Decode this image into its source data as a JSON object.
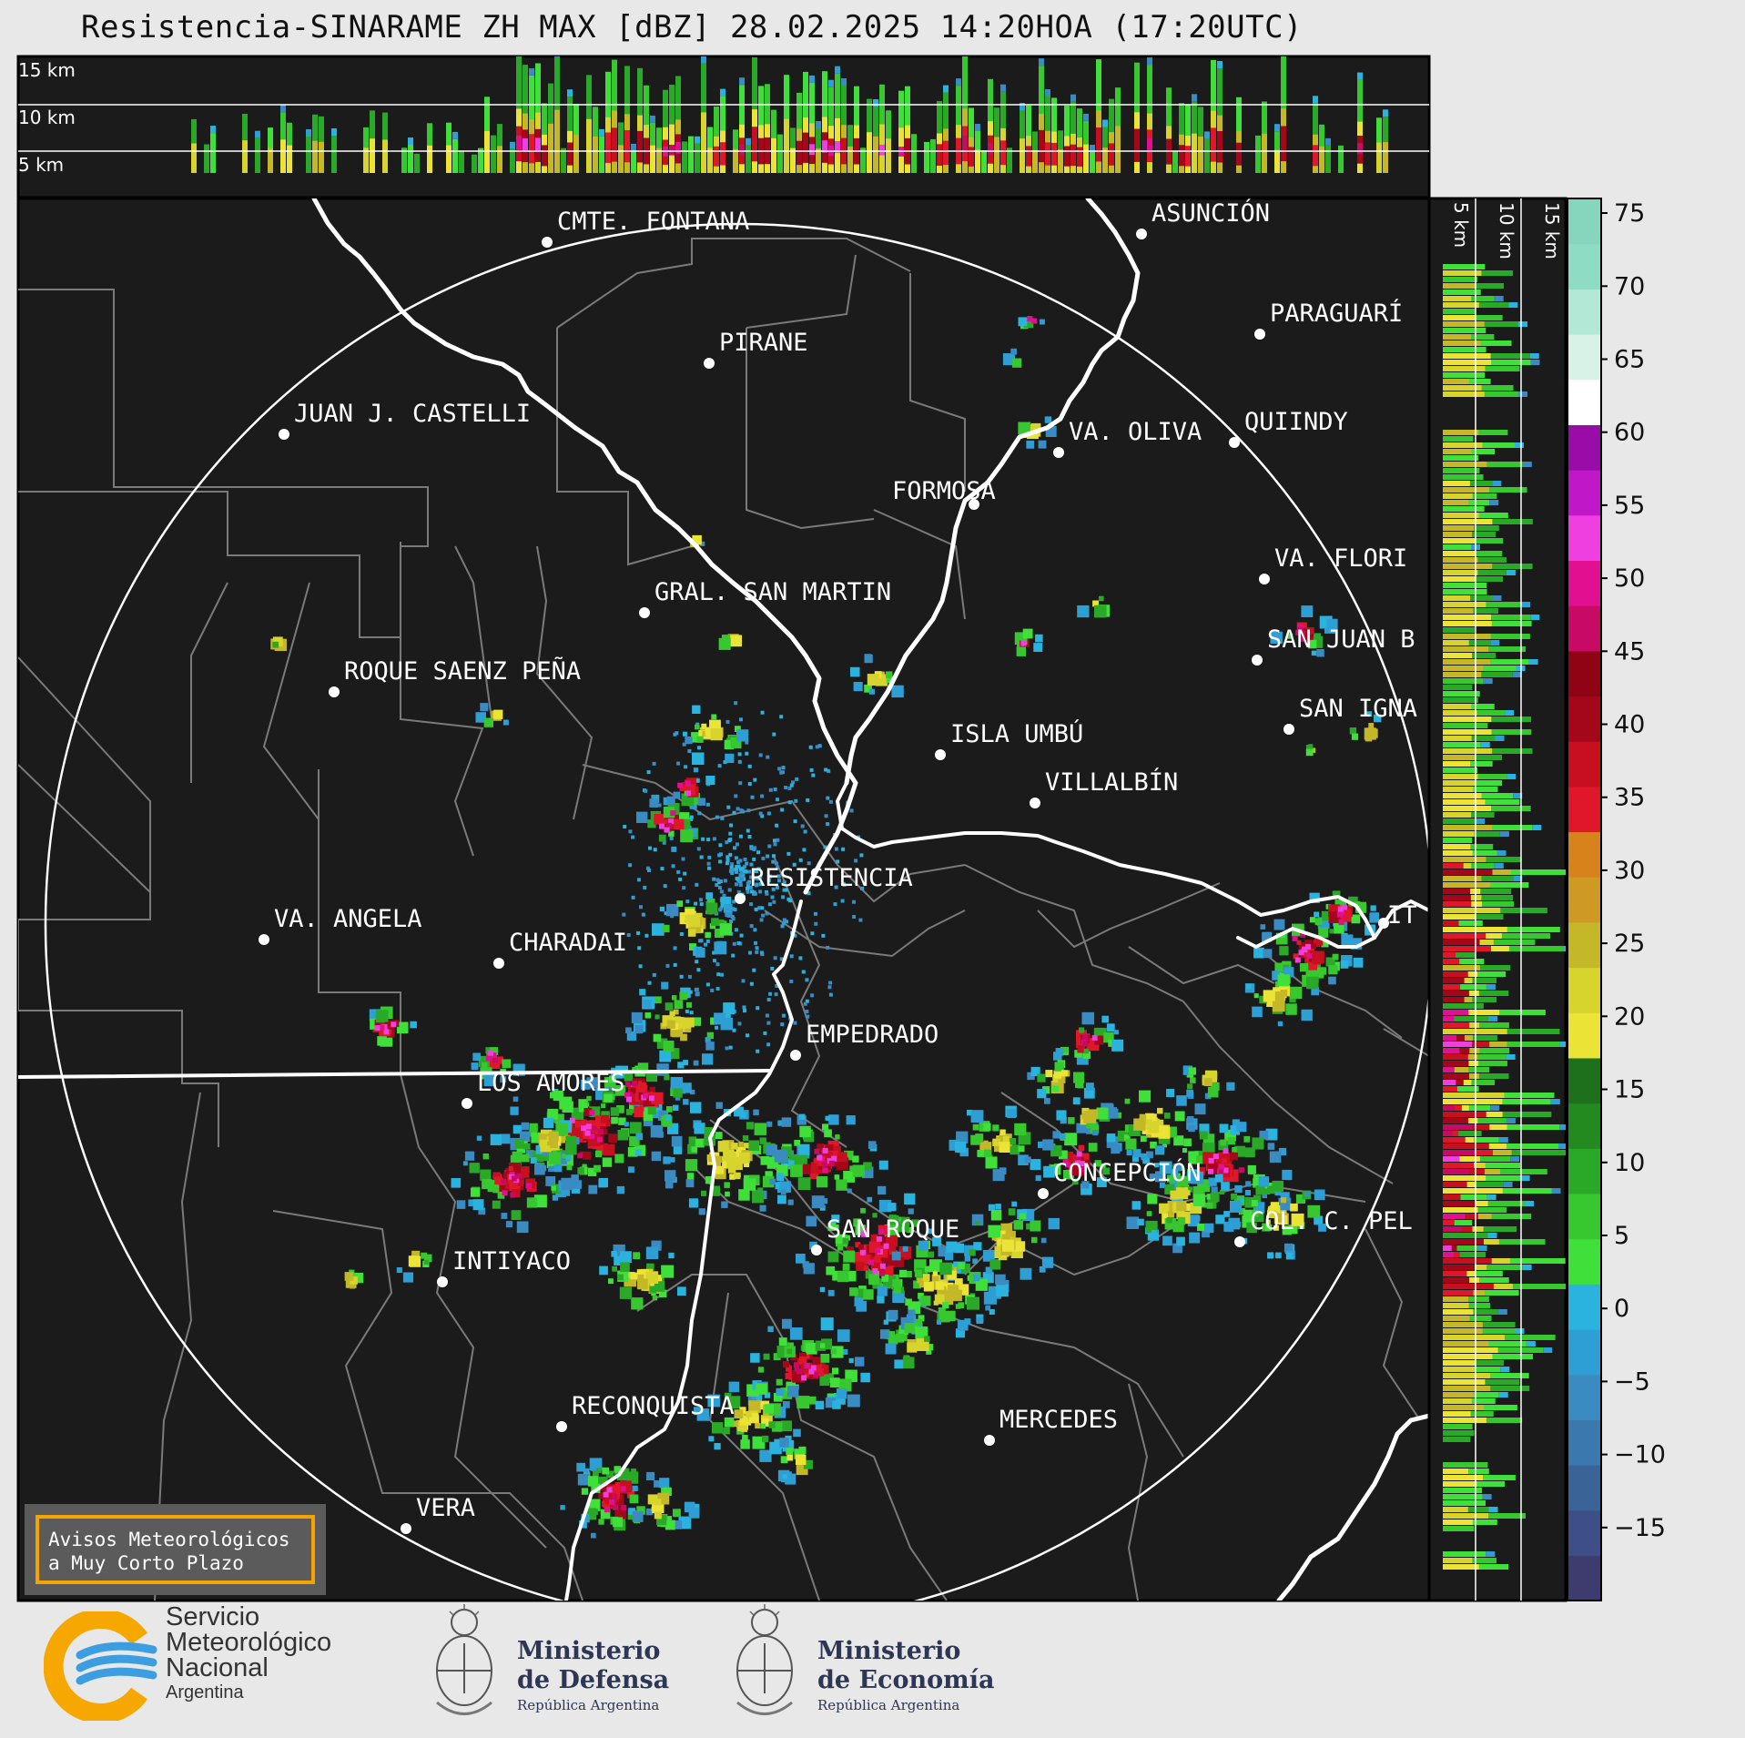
{
  "title": "Resistencia-SINARAME ZH MAX [dBZ] 28.02.2025 14:20HOA (17:20UTC)",
  "top_panel": {
    "height_labels": [
      "15 km",
      "10 km",
      "5 km"
    ]
  },
  "side_panel": {
    "height_labels": [
      "5 km",
      "10 km",
      "15 km"
    ]
  },
  "colorbar": {
    "ticks": [
      "75",
      "70",
      "65",
      "60",
      "55",
      "50",
      "45",
      "40",
      "35",
      "30",
      "25",
      "20",
      "15",
      "10",
      "5",
      "0",
      "−5",
      "−10",
      "−15"
    ],
    "tick_values": [
      75,
      70,
      65,
      60,
      55,
      50,
      45,
      40,
      35,
      30,
      25,
      20,
      15,
      10,
      5,
      0,
      -5,
      -10,
      -15
    ],
    "range": [
      -20,
      76
    ],
    "colors": [
      "#3e3b6e",
      "#3d4f86",
      "#3a6497",
      "#3b78ad",
      "#3a8bc2",
      "#2e9fd4",
      "#2bb3df",
      "#3fe03a",
      "#37c72f",
      "#2aa827",
      "#238a20",
      "#1e701c",
      "#ece337",
      "#d8d42e",
      "#c4b828",
      "#cf9a24",
      "#d8821c",
      "#e0172b",
      "#c80f20",
      "#a4061a",
      "#8e0414",
      "#c80a64",
      "#e01090",
      "#f03fe0",
      "#c018c8",
      "#9a0ca8",
      "#ffffff",
      "#d8f2e8",
      "#b4e8d6",
      "#8edcc4",
      "#86d6be"
    ]
  },
  "cities": [
    {
      "name": "CMTE. FONTANA"
    },
    {
      "name": "ASUNCIÓN"
    },
    {
      "name": "PARAGUARÍ"
    },
    {
      "name": "PIRANE"
    },
    {
      "name": "JUAN J. CASTELLI"
    },
    {
      "name": "VA. OLIVA"
    },
    {
      "name": "QUIINDY"
    },
    {
      "name": "FORMOSA"
    },
    {
      "name": "VA. FLORI"
    },
    {
      "name": "GRAL. SAN MARTIN"
    },
    {
      "name": "SAN JUAN B"
    },
    {
      "name": "ROQUE SAENZ PEÑA"
    },
    {
      "name": "SAN IGNA"
    },
    {
      "name": "ISLA UMBÚ"
    },
    {
      "name": "VILLALBÍN"
    },
    {
      "name": "RESISTENCIA"
    },
    {
      "name": "VA. ANGELA"
    },
    {
      "name": "CHARADAI"
    },
    {
      "name": "IT"
    },
    {
      "name": "EMPEDRADO"
    },
    {
      "name": "LOS AMORES"
    },
    {
      "name": "CONCEPCIÓN"
    },
    {
      "name": "SAN ROQUE"
    },
    {
      "name": "COL. C. PEL"
    },
    {
      "name": "INTIYACO"
    },
    {
      "name": "RECONQUISTA"
    },
    {
      "name": "MERCEDES"
    },
    {
      "name": "VERA"
    }
  ],
  "notice": {
    "line1": "Avisos Meteorológicos",
    "line2": "a Muy Corto Plazo",
    "border_color": "#f5a300"
  },
  "logos": {
    "smn": {
      "line1": "Servicio",
      "line2": "Meteorológico",
      "line3": "Nacional",
      "line4": "Argentina"
    },
    "defensa": {
      "line1": "Ministerio",
      "line2": "de Defensa",
      "line3": "República Argentina"
    },
    "economia": {
      "line1": "Ministerio",
      "line2": "de Economía",
      "line3": "República Argentina"
    }
  }
}
